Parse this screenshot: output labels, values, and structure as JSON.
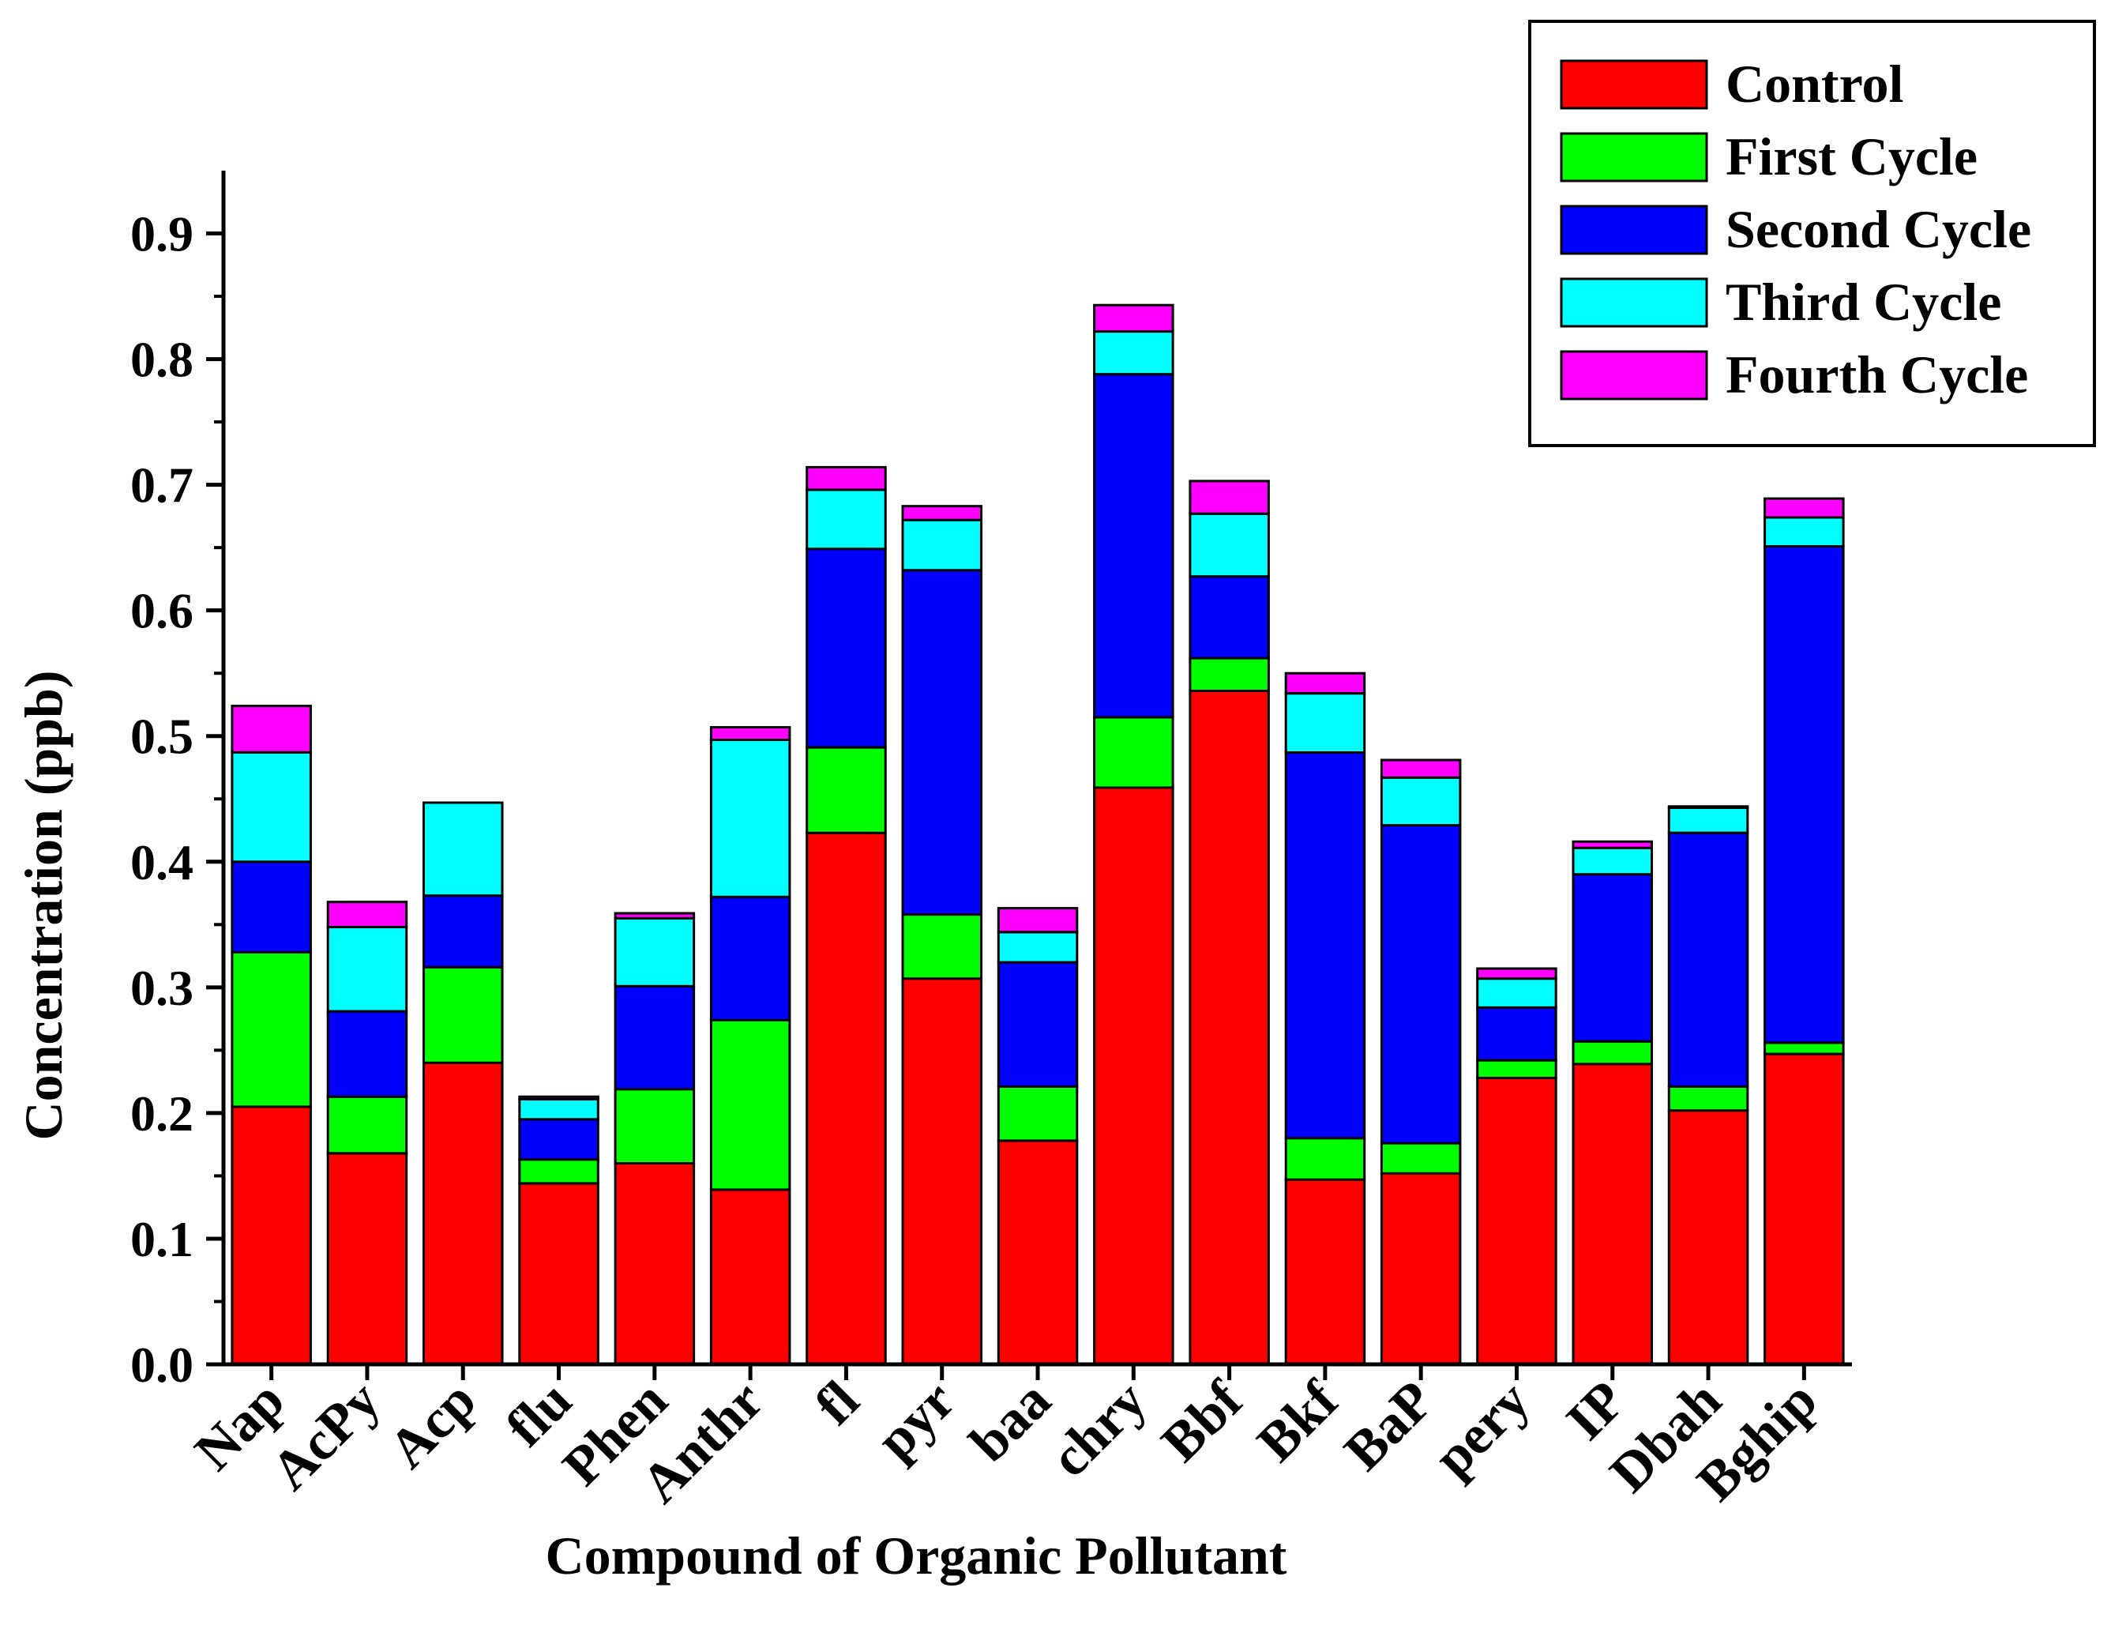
{
  "chart_data": {
    "type": "bar",
    "stacked": true,
    "title": "",
    "xlabel": "Compound of Organic Pollutant",
    "ylabel": "Concentration (ppb)",
    "ylim": [
      0.0,
      0.95
    ],
    "yticks": [
      "0.0",
      "0.1",
      "0.2",
      "0.3",
      "0.4",
      "0.5",
      "0.6",
      "0.7",
      "0.8",
      "0.9"
    ],
    "legend_position": "top-right",
    "categories": [
      "Nap",
      "AcPy",
      "Acp",
      "flu",
      "Phen",
      "Anthr",
      "fl",
      "pyr",
      "baa",
      "chry",
      "Bbf",
      "Bkf",
      "BaP",
      "pery",
      "IP",
      "Dbah",
      "Bghip"
    ],
    "series": [
      {
        "name": "Control",
        "color": "#ff0000",
        "values": [
          0.205,
          0.168,
          0.24,
          0.144,
          0.16,
          0.139,
          0.423,
          0.307,
          0.178,
          0.459,
          0.536,
          0.147,
          0.152,
          0.228,
          0.239,
          0.202,
          0.247
        ]
      },
      {
        "name": "First Cycle",
        "color": "#00ff00",
        "values": [
          0.123,
          0.045,
          0.076,
          0.019,
          0.059,
          0.135,
          0.068,
          0.051,
          0.043,
          0.056,
          0.026,
          0.033,
          0.024,
          0.014,
          0.018,
          0.019,
          0.009
        ]
      },
      {
        "name": "Second Cycle",
        "color": "#0000ff",
        "values": [
          0.072,
          0.068,
          0.057,
          0.032,
          0.082,
          0.098,
          0.158,
          0.274,
          0.099,
          0.273,
          0.065,
          0.307,
          0.253,
          0.042,
          0.133,
          0.202,
          0.395
        ]
      },
      {
        "name": "Third Cycle",
        "color": "#00ffff",
        "values": [
          0.087,
          0.067,
          0.074,
          0.016,
          0.054,
          0.125,
          0.047,
          0.04,
          0.024,
          0.034,
          0.05,
          0.047,
          0.038,
          0.023,
          0.021,
          0.02,
          0.023
        ]
      },
      {
        "name": "Fourth Cycle",
        "color": "#ff00ff",
        "values": [
          0.037,
          0.02,
          0.0,
          0.002,
          0.004,
          0.01,
          0.018,
          0.011,
          0.019,
          0.021,
          0.026,
          0.016,
          0.014,
          0.008,
          0.005,
          0.001,
          0.015
        ]
      }
    ]
  }
}
